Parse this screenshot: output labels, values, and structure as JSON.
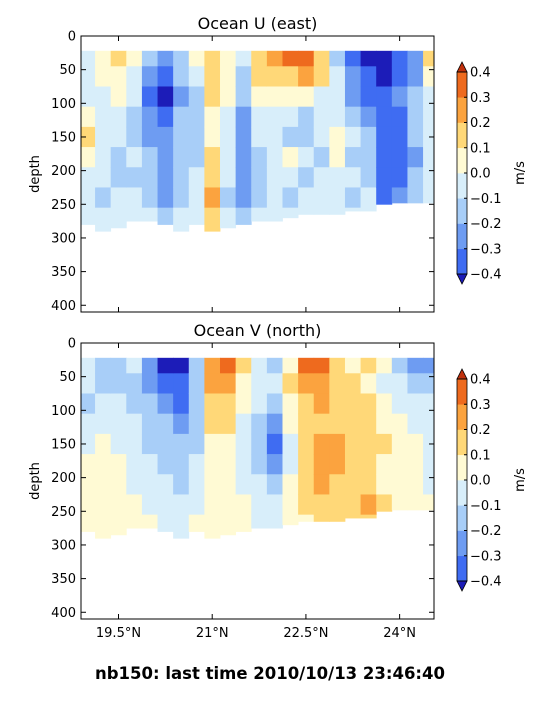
{
  "figure_title": "nb150: last time 2010/10/13 23:46:40",
  "colors": {
    "levels": [
      -0.4,
      -0.3,
      -0.2,
      -0.1,
      0.0,
      0.1,
      0.2,
      0.3,
      0.4
    ],
    "bins": [
      "#3030e8",
      "#3f6cf2",
      "#6e9cf2",
      "#a8cef8",
      "#d8eefa",
      "#fffad4",
      "#ffd878",
      "#fba33f",
      "#ee6a1e",
      "#cc3a10"
    ],
    "under": "#1c1cb8",
    "over": "#c0300c",
    "frame": "#000000",
    "background": "#ffffff"
  },
  "chart_data": [
    {
      "type": "heatmap",
      "panel": "top",
      "title": "Ocean U (east)",
      "xlabel": "",
      "ylabel": "depth",
      "colorbar_label": "m/s",
      "xlim": [
        18.9,
        24.55
      ],
      "ylim": [
        410,
        0
      ],
      "x_tick_values": [
        19.5,
        21.0,
        22.5,
        24.0
      ],
      "x_tick_labels": [
        "19.5°N",
        "21°N",
        "22.5°N",
        "24°N"
      ],
      "x_tick_labels_shown": false,
      "y_ticks": [
        0,
        50,
        100,
        150,
        200,
        250,
        300,
        350,
        400
      ],
      "colorbar_ticks": [
        "0.4",
        "0.3",
        "0.2",
        "0.1",
        "0.0",
        "−0.1",
        "−0.2",
        "−0.3",
        "−0.4"
      ],
      "x": [
        19.0,
        19.25,
        19.5,
        19.75,
        20.0,
        20.25,
        20.5,
        20.75,
        21.0,
        21.25,
        21.5,
        21.75,
        22.0,
        22.25,
        22.5,
        22.75,
        23.0,
        23.25,
        23.5,
        23.75,
        24.0,
        24.25,
        24.5
      ],
      "depth": [
        30,
        60,
        90,
        120,
        150,
        180,
        210,
        240,
        270
      ],
      "bottom_depth": [
        280,
        290,
        285,
        275,
        275,
        280,
        290,
        280,
        290,
        285,
        280,
        275,
        275,
        270,
        265,
        265,
        265,
        260,
        260,
        250,
        248,
        248,
        248
      ],
      "values": [
        [
          -0.08,
          0.05,
          0.15,
          0.05,
          -0.2,
          -0.28,
          -0.15,
          0.0,
          0.12,
          0.05,
          -0.1,
          0.12,
          0.2,
          0.3,
          0.32,
          0.18,
          -0.12,
          -0.35,
          -0.42,
          -0.45,
          -0.38,
          -0.3,
          0.1
        ],
        [
          -0.1,
          0.0,
          0.08,
          -0.05,
          -0.3,
          -0.38,
          -0.2,
          -0.05,
          0.18,
          0.05,
          -0.15,
          0.1,
          0.12,
          0.18,
          0.2,
          0.1,
          -0.05,
          -0.3,
          -0.35,
          -0.42,
          -0.38,
          -0.25,
          0.0
        ],
        [
          -0.05,
          -0.05,
          0.0,
          -0.1,
          -0.35,
          -0.42,
          -0.25,
          -0.12,
          0.12,
          0.0,
          -0.2,
          0.05,
          0.0,
          0.05,
          0.0,
          -0.05,
          -0.1,
          -0.25,
          -0.32,
          -0.35,
          -0.3,
          -0.2,
          -0.05
        ],
        [
          0.05,
          -0.1,
          -0.05,
          -0.12,
          -0.28,
          -0.35,
          -0.2,
          -0.15,
          0.05,
          -0.05,
          -0.25,
          -0.05,
          -0.1,
          -0.1,
          -0.15,
          -0.1,
          -0.05,
          -0.15,
          -0.25,
          -0.38,
          -0.32,
          -0.18,
          -0.05
        ],
        [
          0.1,
          -0.05,
          -0.1,
          -0.15,
          -0.22,
          -0.25,
          -0.15,
          -0.18,
          0.08,
          -0.05,
          -0.28,
          -0.1,
          -0.05,
          -0.15,
          -0.15,
          -0.05,
          0.05,
          -0.1,
          -0.2,
          -0.4,
          -0.35,
          -0.2,
          -0.05
        ],
        [
          0.05,
          -0.1,
          -0.12,
          -0.1,
          -0.18,
          -0.28,
          -0.2,
          -0.15,
          0.12,
          -0.1,
          -0.3,
          -0.15,
          -0.05,
          0.05,
          -0.1,
          -0.15,
          0.0,
          -0.15,
          -0.15,
          -0.38,
          -0.35,
          -0.25,
          -0.1
        ],
        [
          -0.05,
          -0.1,
          -0.12,
          -0.12,
          -0.2,
          -0.3,
          -0.15,
          -0.1,
          0.18,
          -0.1,
          -0.28,
          -0.12,
          -0.05,
          -0.1,
          -0.12,
          -0.1,
          -0.05,
          -0.1,
          -0.12,
          -0.38,
          -0.35,
          -0.2,
          -0.1
        ],
        [
          -0.05,
          -0.12,
          -0.1,
          -0.08,
          -0.15,
          -0.22,
          -0.12,
          -0.08,
          0.2,
          -0.12,
          -0.25,
          -0.15,
          -0.1,
          -0.12,
          -0.1,
          -0.1,
          -0.05,
          -0.12,
          -0.1,
          -0.32,
          -0.3,
          -0.2,
          -0.05
        ],
        [
          -0.05,
          -0.08,
          -0.05,
          -0.05,
          -0.1,
          -0.15,
          -0.1,
          -0.05,
          0.18,
          -0.1,
          -0.15,
          -0.1,
          -0.08,
          -0.1,
          -0.08,
          -0.05,
          -0.05,
          -0.08,
          -0.05,
          -0.15,
          -0.12,
          -0.1,
          -0.05
        ]
      ]
    },
    {
      "type": "heatmap",
      "panel": "bottom",
      "title": "Ocean V (north)",
      "xlabel": "",
      "ylabel": "depth",
      "colorbar_label": "m/s",
      "xlim": [
        18.9,
        24.55
      ],
      "ylim": [
        410,
        0
      ],
      "x_tick_values": [
        19.5,
        21.0,
        22.5,
        24.0
      ],
      "x_tick_labels": [
        "19.5°N",
        "21°N",
        "22.5°N",
        "24°N"
      ],
      "x_tick_labels_shown": true,
      "y_ticks": [
        0,
        50,
        100,
        150,
        200,
        250,
        300,
        350,
        400
      ],
      "colorbar_ticks": [
        "0.4",
        "0.3",
        "0.2",
        "0.1",
        "0.0",
        "−0.1",
        "−0.2",
        "−0.3",
        "−0.4"
      ],
      "x": [
        19.0,
        19.25,
        19.5,
        19.75,
        20.0,
        20.25,
        20.5,
        20.75,
        21.0,
        21.25,
        21.5,
        21.75,
        22.0,
        22.25,
        22.5,
        22.75,
        23.0,
        23.25,
        23.5,
        23.75,
        24.0,
        24.25,
        24.5
      ],
      "depth": [
        30,
        60,
        90,
        120,
        150,
        180,
        210,
        240,
        270
      ],
      "bottom_depth": [
        280,
        290,
        285,
        275,
        275,
        280,
        290,
        280,
        290,
        285,
        280,
        275,
        275,
        270,
        265,
        265,
        265,
        260,
        260,
        250,
        248,
        248,
        248
      ],
      "values": [
        [
          -0.05,
          -0.15,
          -0.2,
          -0.1,
          -0.3,
          -0.42,
          -0.45,
          -0.15,
          0.25,
          0.3,
          0.1,
          -0.1,
          -0.15,
          0.05,
          0.35,
          0.3,
          0.15,
          0.05,
          0.1,
          0.0,
          -0.15,
          -0.25,
          -0.3
        ],
        [
          -0.1,
          -0.12,
          -0.15,
          -0.12,
          -0.25,
          -0.38,
          -0.38,
          -0.2,
          0.2,
          0.25,
          0.05,
          -0.05,
          -0.1,
          0.1,
          0.25,
          0.22,
          0.15,
          0.1,
          0.05,
          -0.05,
          -0.1,
          -0.2,
          -0.15
        ],
        [
          -0.12,
          -0.1,
          -0.08,
          -0.15,
          -0.2,
          -0.28,
          -0.32,
          -0.15,
          0.15,
          0.18,
          0.0,
          -0.1,
          -0.15,
          0.05,
          0.18,
          0.2,
          0.12,
          0.1,
          0.12,
          0.0,
          -0.05,
          -0.1,
          -0.1
        ],
        [
          -0.1,
          -0.05,
          -0.05,
          -0.1,
          -0.15,
          -0.2,
          -0.25,
          -0.15,
          0.1,
          0.12,
          -0.05,
          -0.15,
          -0.25,
          0.0,
          0.1,
          0.18,
          0.15,
          0.12,
          0.1,
          0.05,
          0.0,
          -0.05,
          -0.1
        ],
        [
          -0.05,
          0.0,
          -0.05,
          -0.1,
          -0.12,
          -0.15,
          -0.2,
          -0.12,
          0.05,
          0.08,
          -0.1,
          -0.2,
          -0.32,
          -0.05,
          0.12,
          0.2,
          0.2,
          0.15,
          0.12,
          0.1,
          0.05,
          0.0,
          -0.05
        ],
        [
          0.0,
          0.05,
          0.0,
          -0.05,
          -0.1,
          -0.12,
          -0.15,
          -0.1,
          0.0,
          0.05,
          -0.05,
          -0.15,
          -0.3,
          -0.05,
          0.15,
          0.22,
          0.2,
          0.12,
          0.1,
          0.08,
          0.05,
          0.0,
          -0.05
        ],
        [
          0.05,
          0.05,
          0.0,
          -0.05,
          -0.1,
          -0.1,
          -0.12,
          -0.1,
          0.05,
          0.05,
          -0.05,
          -0.1,
          -0.2,
          0.0,
          0.15,
          0.2,
          0.18,
          0.12,
          0.1,
          0.05,
          0.05,
          0.0,
          -0.05
        ],
        [
          0.05,
          0.08,
          0.05,
          0.0,
          -0.05,
          -0.08,
          -0.1,
          -0.05,
          0.05,
          0.05,
          0.0,
          -0.05,
          -0.1,
          0.0,
          0.12,
          0.15,
          0.15,
          0.18,
          0.2,
          0.1,
          0.05,
          0.0,
          0.0
        ],
        [
          0.05,
          0.05,
          0.05,
          0.0,
          0.0,
          -0.05,
          -0.05,
          0.0,
          0.05,
          0.05,
          0.0,
          -0.05,
          -0.05,
          0.0,
          0.05,
          0.1,
          0.1,
          0.1,
          0.12,
          0.05,
          0.05,
          0.0,
          0.0
        ]
      ]
    }
  ]
}
